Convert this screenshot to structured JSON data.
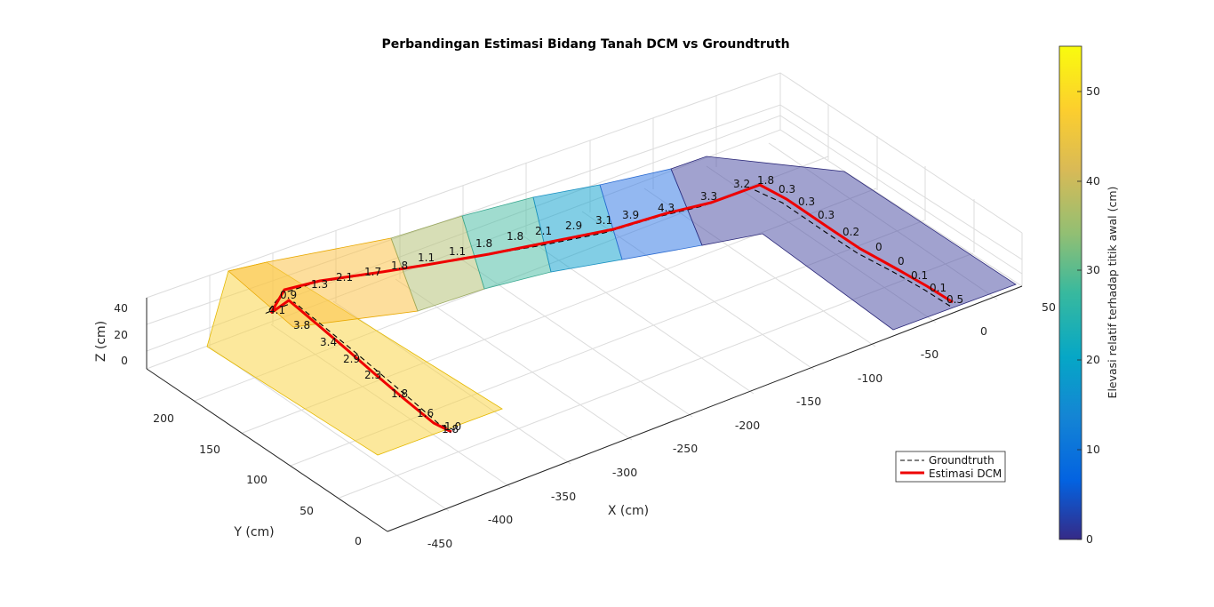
{
  "chart_data": {
    "type": "surface3d",
    "title": "Perbandingan Estimasi Bidang Tanah DCM vs Groundtruth",
    "xlabel": "X (cm)",
    "ylabel": "Y (cm)",
    "zlabel": "Z (cm)",
    "xlim": [
      -450,
      50
    ],
    "ylim": [
      0,
      220
    ],
    "zlim": [
      0,
      45
    ],
    "x_ticks": [
      -450,
      -400,
      -350,
      -300,
      -250,
      -200,
      -150,
      -100,
      -50,
      0,
      50
    ],
    "y_ticks": [
      0,
      50,
      100,
      150,
      200
    ],
    "z_ticks": [
      0,
      20,
      40
    ],
    "grid": true,
    "legend": {
      "placement": "bottom-right",
      "entries": [
        {
          "label": "Groundtruth",
          "style": "dashed",
          "color": "#000000"
        },
        {
          "label": "Estimasi DCM",
          "style": "solid",
          "color": "#ee0000"
        }
      ]
    },
    "colorbar": {
      "label": "Elevasi relatif terhadap titik awal (cm)",
      "range": [
        0,
        55
      ],
      "ticks": [
        0,
        10,
        20,
        30,
        40,
        50
      ],
      "colormap": "parula"
    },
    "segment_labels": [
      "1.8",
      "1.0",
      "1.6",
      "1.8",
      "2.3",
      "2.9",
      "3.4",
      "3.8",
      "4.1",
      "0.9",
      "1.3",
      "2.1",
      "1.7",
      "1.8",
      "1.1",
      "1.1",
      "1.8",
      "1.8",
      "2.1",
      "2.9",
      "3.1",
      "3.9",
      "4.3",
      "3.3",
      "3.2",
      "1.8",
      "0.3",
      "0.3",
      "0.3",
      "0.2",
      "0",
      "0",
      "0.1",
      "0.1",
      "0.5"
    ]
  }
}
